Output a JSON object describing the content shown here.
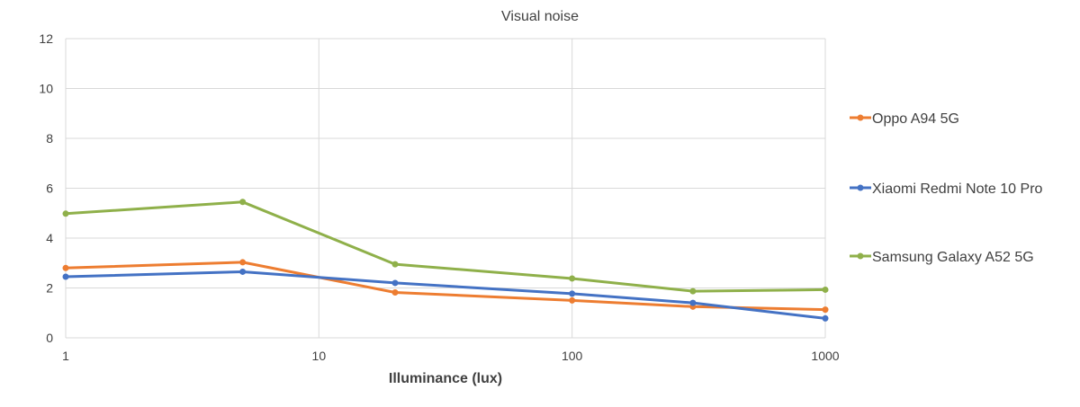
{
  "chart_data": {
    "type": "line",
    "title": "Visual noise",
    "xlabel": "Illuminance (lux)",
    "ylabel": "",
    "x_scale": "log",
    "xlim": [
      1,
      1000
    ],
    "ylim": [
      0,
      12
    ],
    "x_ticks": [
      "1",
      "10",
      "100",
      "1000"
    ],
    "y_ticks": [
      "0",
      "2",
      "4",
      "6",
      "8",
      "10",
      "12"
    ],
    "grid": true,
    "legend_position": "right",
    "x": [
      1,
      5,
      20,
      100,
      300,
      1000
    ],
    "series": [
      {
        "name": "Oppo A94 5G",
        "color": "#ED7D31",
        "values": [
          2.8,
          3.03,
          1.82,
          1.5,
          1.25,
          1.13
        ]
      },
      {
        "name": "Xiaomi Redmi Note 10 Pro",
        "color": "#4472C4",
        "values": [
          2.45,
          2.65,
          2.2,
          1.77,
          1.4,
          0.78
        ]
      },
      {
        "name": "Samsung Galaxy A52 5G",
        "color": "#8FB04A",
        "values": [
          4.98,
          5.45,
          2.95,
          2.38,
          1.87,
          1.93
        ]
      }
    ]
  }
}
